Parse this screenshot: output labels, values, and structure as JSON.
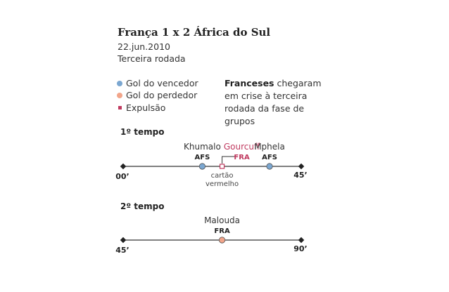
{
  "header": {
    "title": "França 1 x 2 África do Sul",
    "date": "22.jun.2010",
    "round": "Terceira rodada"
  },
  "legend": {
    "winner_goal": "Gol do vencedor",
    "loser_goal": "Gol do perdedor",
    "expulsion": "Expulsão"
  },
  "note": {
    "bold": "Franceses",
    "rest": " chegaram em crise à terceira rodada da fase de grupos"
  },
  "colors": {
    "winner": "#7ba7d1",
    "loser": "#f2a58a",
    "expulsion": "#c0395f",
    "line": "#333333"
  },
  "timeline_data": {
    "halves": [
      {
        "title": "1º tempo",
        "start_label": "00’",
        "end_label": "45’",
        "start_minute": 0,
        "end_minute": 45,
        "events": [
          {
            "type": "winner_goal",
            "minute": 20,
            "player": "Khumalo",
            "team": "AFS"
          },
          {
            "type": "expulsion",
            "minute": 25,
            "player": "Gourcuff",
            "team": "FRA",
            "note_line1": "cartão",
            "note_line2": "vermelho"
          },
          {
            "type": "winner_goal",
            "minute": 37,
            "player": "Mphela",
            "team": "AFS"
          }
        ]
      },
      {
        "title": "2º tempo",
        "start_label": "45’",
        "end_label": "90’",
        "start_minute": 45,
        "end_minute": 90,
        "events": [
          {
            "type": "loser_goal",
            "minute": 70,
            "player": "Malouda",
            "team": "FRA"
          }
        ]
      }
    ]
  }
}
